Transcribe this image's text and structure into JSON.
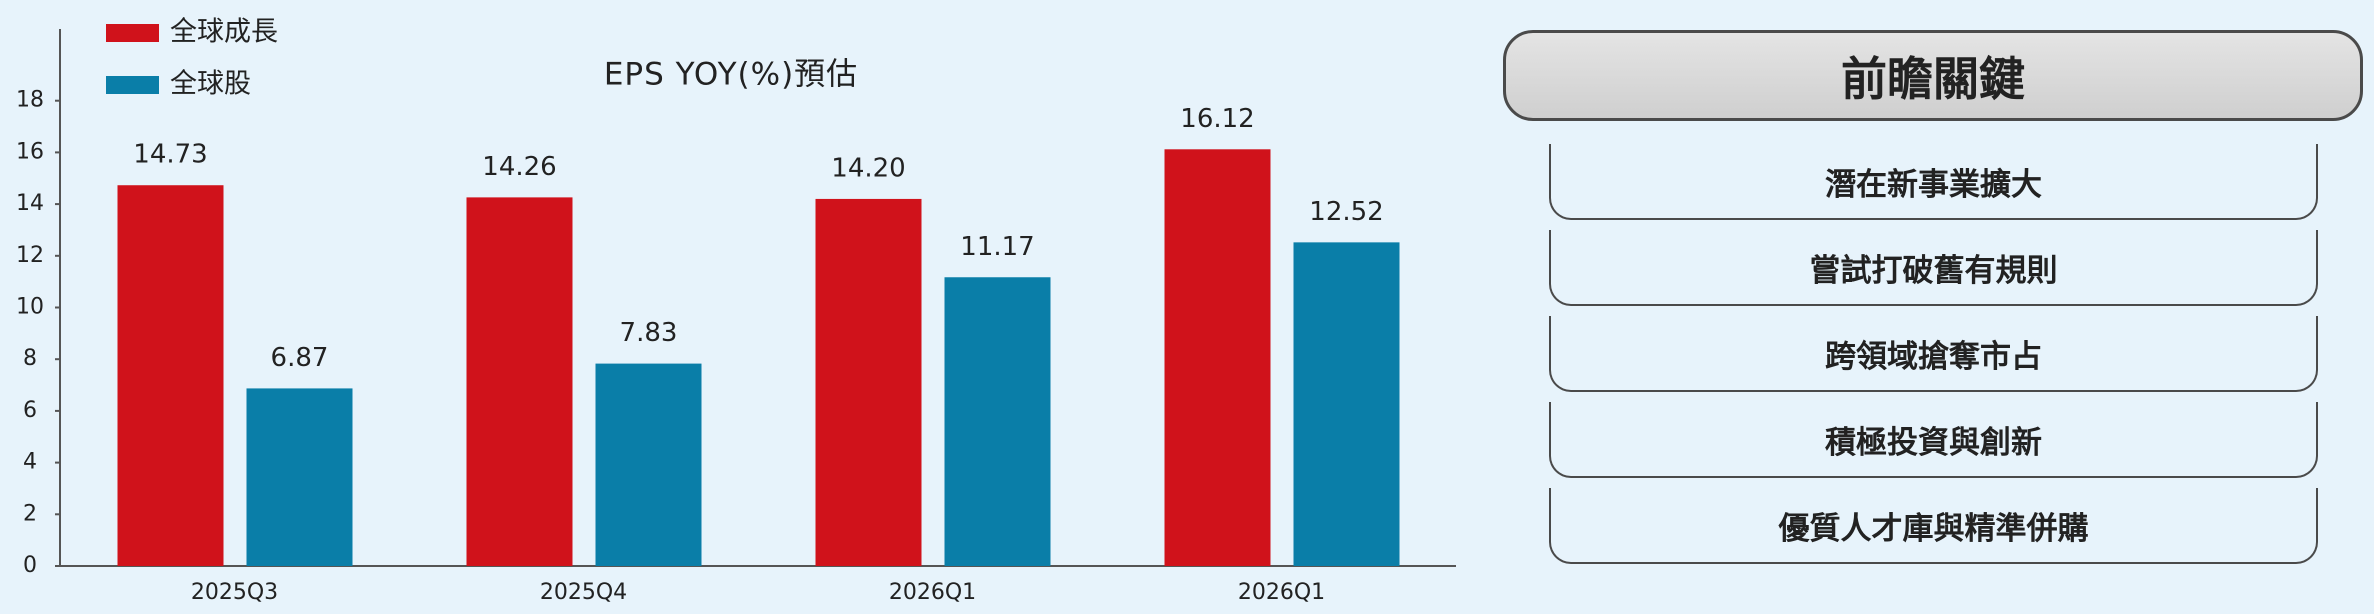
{
  "chart_data": {
    "type": "bar",
    "title": "EPS YOY(%)預估",
    "categories": [
      "2025Q3",
      "2025Q4",
      "2026Q1",
      "2026Q1"
    ],
    "series": [
      {
        "name": "全球成長",
        "color": "#d0121b",
        "values": [
          14.73,
          14.26,
          14.2,
          16.12
        ],
        "value_labels": [
          "14.73",
          "14.26",
          "14.20",
          "16.12"
        ]
      },
      {
        "name": "全球股",
        "color": "#0a7ea8",
        "values": [
          6.87,
          7.83,
          11.17,
          12.52
        ],
        "value_labels": [
          "6.87",
          "7.83",
          "11.17",
          "12.52"
        ]
      }
    ],
    "ylim": [
      0,
      20
    ],
    "yticks": [
      0,
      2,
      4,
      6,
      8,
      10,
      12,
      14,
      16,
      18
    ],
    "grid": false,
    "legend": "top-left"
  },
  "panel": {
    "title": "前瞻關鍵",
    "items": [
      "潛在新事業擴大",
      "嘗試打破舊有規則",
      "跨領域搶奪市占",
      "積極投資與創新",
      "優質人才庫與精準併購"
    ]
  }
}
